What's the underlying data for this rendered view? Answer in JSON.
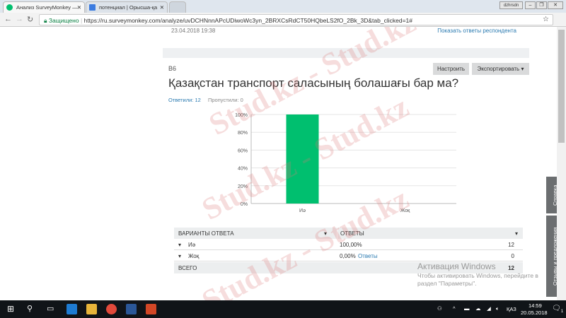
{
  "browser": {
    "tabs": [
      {
        "label": "Анализ SurveyMonkey —",
        "icon": "surveymonkey-icon",
        "active": true
      },
      {
        "label": "потенциал | Орысша-қа",
        "icon": "translate-icon",
        "active": false
      }
    ],
    "user_badge": "dzhrsdn",
    "secure_label": "Защищено",
    "url": "https://ru.surveymonkey.com/analyze/uvDCHNnnAPcUDiwoWc3yn_2BRXCsRdCT50HQbeLS2fO_2Bk_3D&tab_clicked=1#"
  },
  "prev_card": {
    "date": "23.04.2018 19:38",
    "link": "Показать ответы респондента"
  },
  "question": {
    "number": "В6",
    "title": "Қазақстан транспорт саласының болашағы бар ма?",
    "answered": "Ответили: 12",
    "skipped": "Пропустили: 0",
    "customize_label": "Настроить",
    "export_label": "Экспортировать"
  },
  "chart_data": {
    "type": "bar",
    "categories": [
      "Иә",
      "Жоқ"
    ],
    "values": [
      100,
      0
    ],
    "ylim": [
      0,
      100
    ],
    "yticks": [
      "0%",
      "20%",
      "40%",
      "60%",
      "80%",
      "100%"
    ],
    "grid": true,
    "color": "#00bf6f"
  },
  "table": {
    "headers": [
      "ВАРИАНТЫ ОТВЕТА",
      "ОТВЕТЫ"
    ],
    "rows": [
      {
        "option": "Иә",
        "link": "",
        "percent": "100,00%",
        "count": "12"
      },
      {
        "option": "Жоқ",
        "link": "Ответы",
        "percent": "0,00%",
        "count": "0"
      }
    ],
    "total_label": "ВСЕГО",
    "total": "12"
  },
  "side_tabs": {
    "help": "Справка",
    "feedback": "Отзывы и предложения"
  },
  "activation": {
    "title": "Активация Windows",
    "line1": "Чтобы активировать Windows, перейдите в",
    "line2": "раздел \"Параметры\"."
  },
  "watermark": "Stud.kz - Stud.kz",
  "taskbar": {
    "lang": "ҚАЗ",
    "time": "14:59",
    "date": "20.05.2018",
    "notifications": "1"
  }
}
